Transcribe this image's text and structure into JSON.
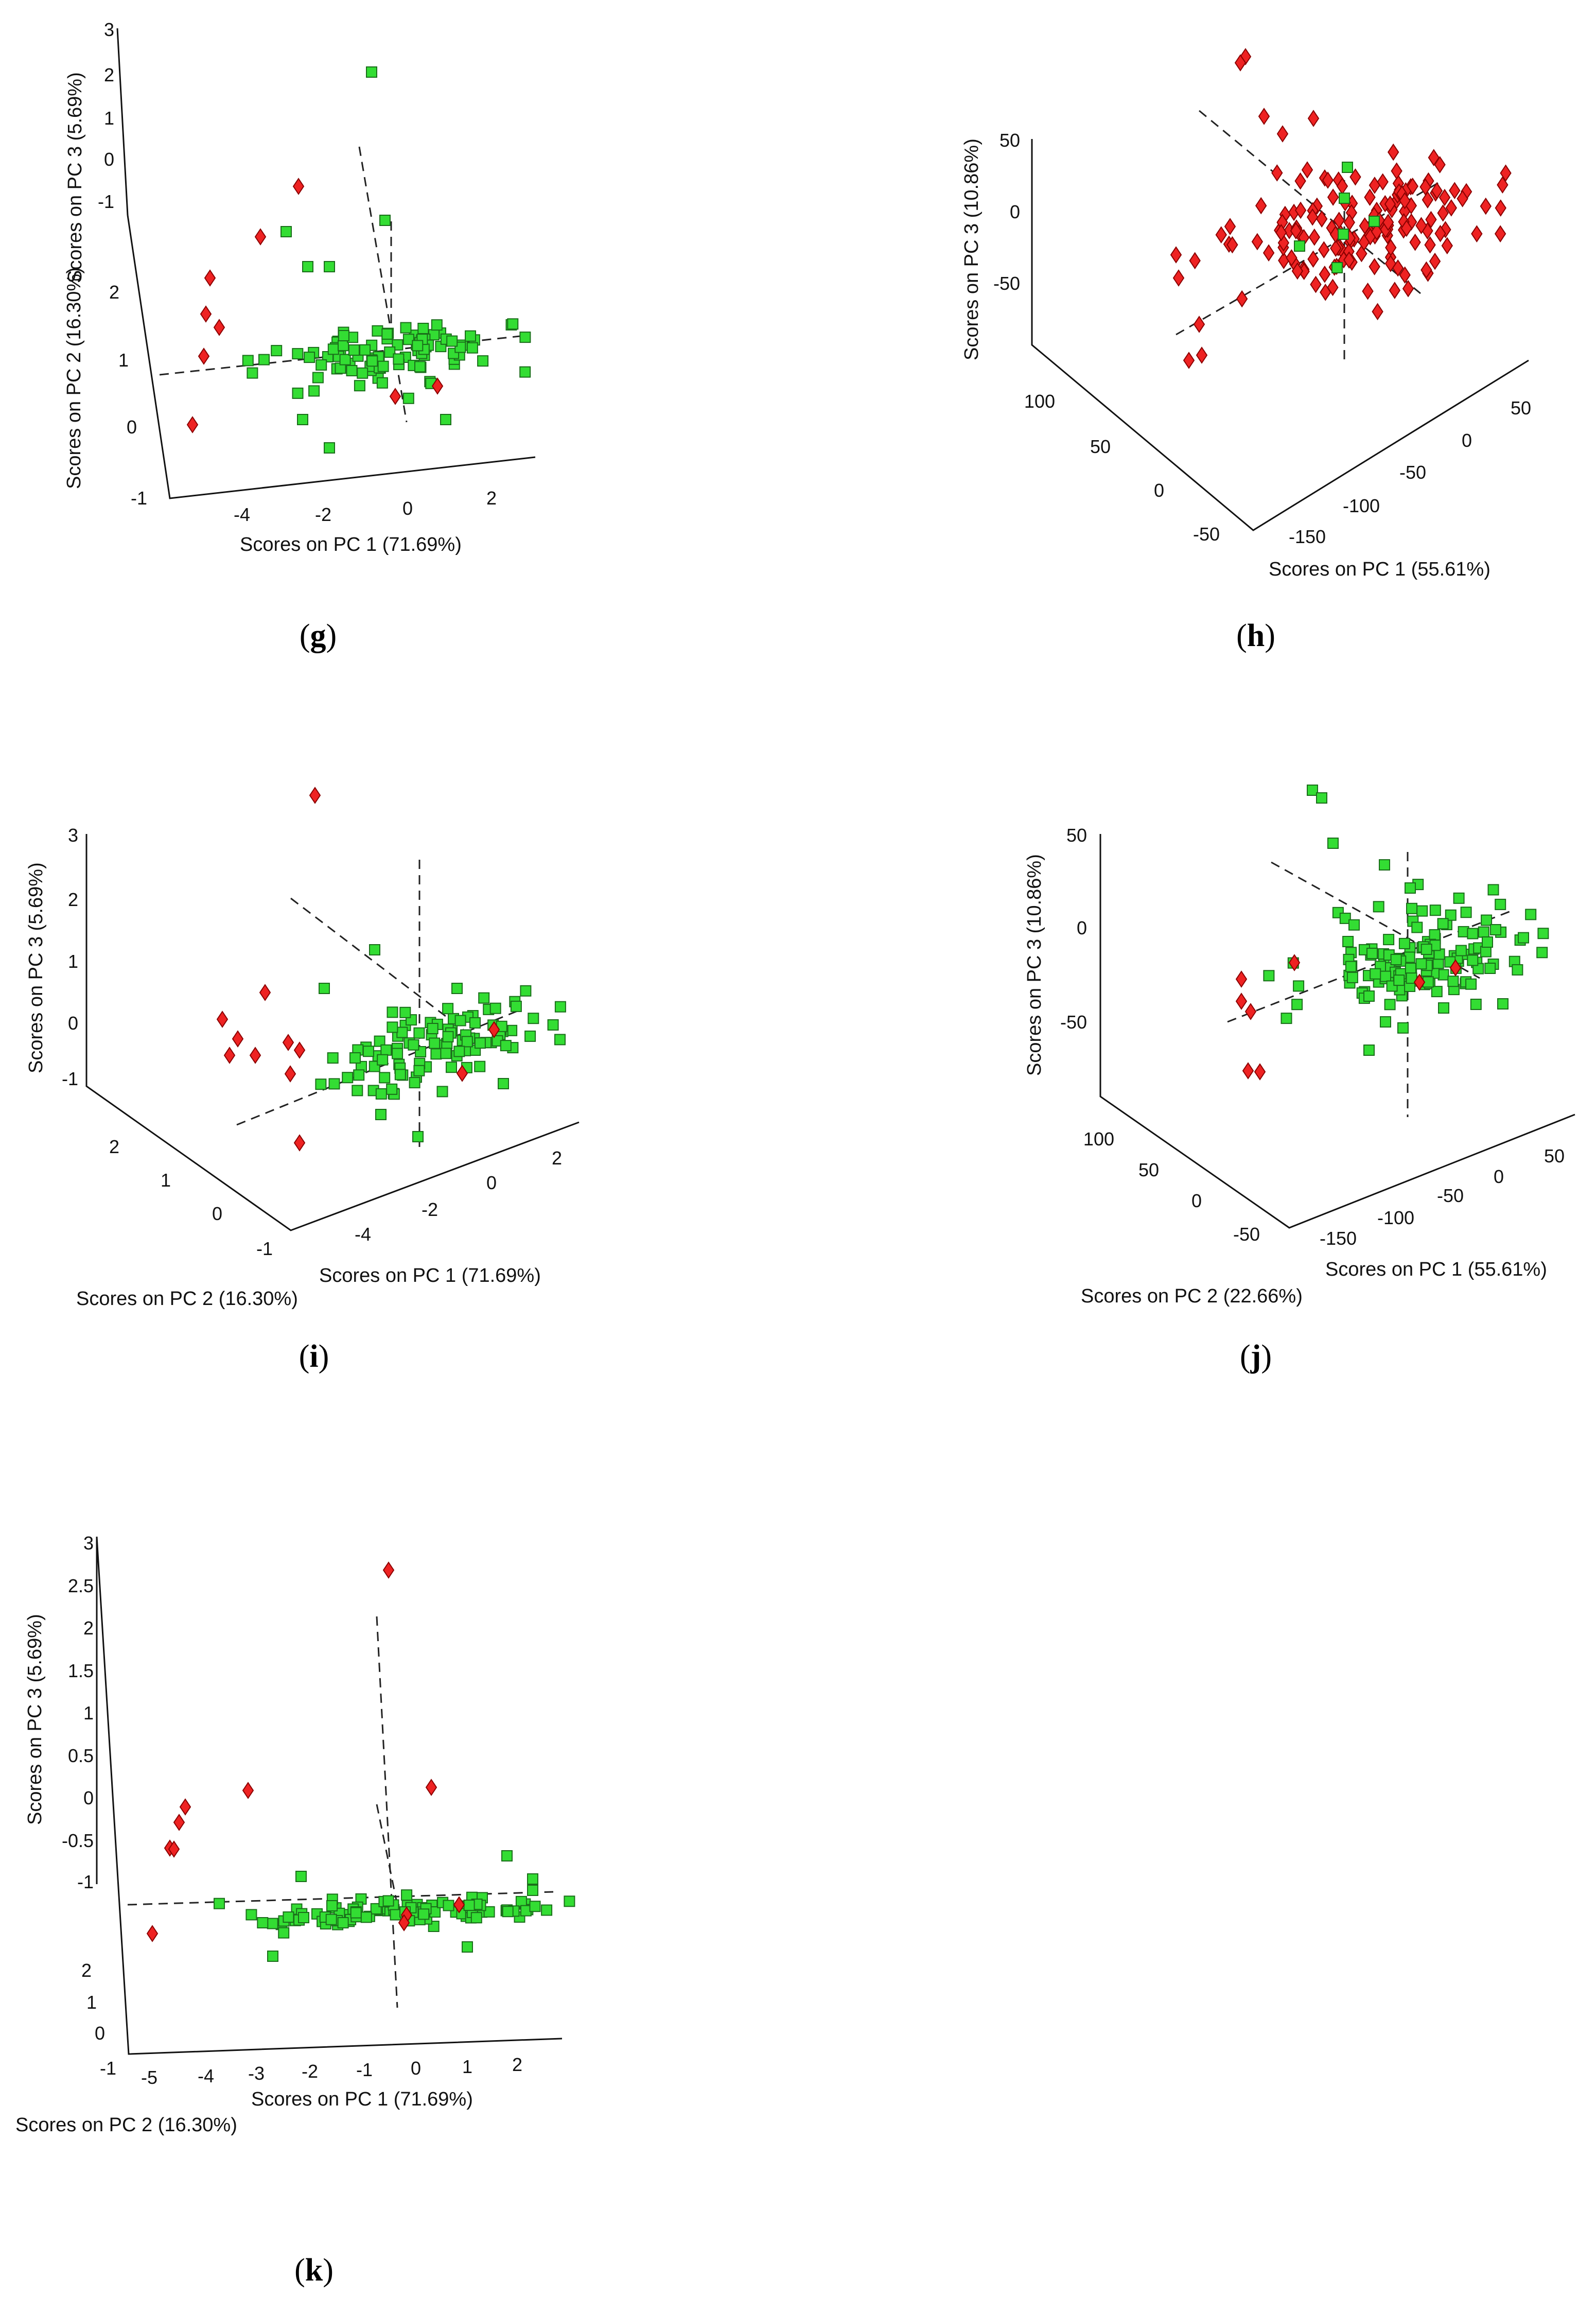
{
  "colors": {
    "green_class": "#33dd33",
    "red_class": "#ee2222",
    "axis": "#111111"
  },
  "chart_data": [
    {
      "id": "g",
      "type": "scatter",
      "label_open": "(",
      "label_mid": "g",
      "label_close": ")",
      "xlabel": "Scores on PC 1 (71.69%)",
      "ylabel": "Scores on PC 2 (16.30%)",
      "zlabel": "Scores on PC 3 (5.69%)",
      "x_ticks": [
        "-4",
        "-2",
        "0",
        "2"
      ],
      "y_ticks": [
        "2",
        "1",
        "0",
        "-1"
      ],
      "z_ticks": [
        "3",
        "2",
        "1",
        "0",
        "-1"
      ],
      "series": [
        {
          "name": "green",
          "marker": "square",
          "count": 110
        },
        {
          "name": "red",
          "marker": "diamond",
          "count": 12
        }
      ]
    },
    {
      "id": "h",
      "type": "scatter",
      "label_open": "(",
      "label_mid": "h",
      "label_close": ")",
      "xlabel": "Scores on PC 1 (55.61%)",
      "ylabel": "",
      "zlabel": "Scores on PC 3 (10.86%)",
      "x_ticks": [
        "-150",
        "-100",
        "-50",
        "0",
        "50"
      ],
      "y_ticks": [
        "100",
        "50",
        "0",
        "-50"
      ],
      "z_ticks": [
        "50",
        "0",
        "-50"
      ],
      "series": [
        {
          "name": "red",
          "marker": "diamond",
          "count": 170
        },
        {
          "name": "green",
          "marker": "square",
          "count": 6
        }
      ]
    },
    {
      "id": "i",
      "type": "scatter",
      "label_open": "(",
      "label_mid": "i",
      "label_close": ")",
      "xlabel": "Scores on PC 1 (71.69%)",
      "ylabel": "Scores on PC 2 (16.30%)",
      "zlabel": "Scores on PC 3 (5.69%)",
      "x_ticks": [
        "-4",
        "-2",
        "0",
        "2"
      ],
      "y_ticks": [
        "2",
        "1",
        "0",
        "-1"
      ],
      "z_ticks": [
        "3",
        "2",
        "1",
        "0",
        "-1"
      ],
      "series": [
        {
          "name": "green",
          "marker": "square",
          "count": 110
        },
        {
          "name": "red",
          "marker": "diamond",
          "count": 13
        }
      ]
    },
    {
      "id": "j",
      "type": "scatter",
      "label_open": "(",
      "label_mid": "j",
      "label_close": ")",
      "xlabel": "Scores on PC 1 (55.61%)",
      "ylabel": "Scores on PC 2 (22.66%)",
      "zlabel": "Scores on PC 3 (10.86%)",
      "x_ticks": [
        "-150",
        "-100",
        "-50",
        "0",
        "50"
      ],
      "y_ticks": [
        "100",
        "50",
        "0",
        "-50"
      ],
      "z_ticks": [
        "50",
        "0",
        "-50"
      ],
      "series": [
        {
          "name": "green",
          "marker": "square",
          "count": 150
        },
        {
          "name": "red",
          "marker": "diamond",
          "count": 7
        }
      ]
    },
    {
      "id": "k",
      "type": "scatter",
      "label_open": "(",
      "label_mid": "k",
      "label_close": ")",
      "xlabel": "Scores on PC 1 (71.69%)",
      "ylabel": "Scores on PC 2 (16.30%)",
      "zlabel": "Scores on PC 3 (5.69%)",
      "x_ticks": [
        "-5",
        "-4",
        "-3",
        "-2",
        "-1",
        "0",
        "1",
        "2"
      ],
      "y_ticks": [
        "2",
        "1",
        "0",
        "-1"
      ],
      "z_ticks": [
        "3",
        "2.5",
        "2",
        "1.5",
        "1",
        "0.5",
        "0",
        "-0.5",
        "-1"
      ],
      "series": [
        {
          "name": "green",
          "marker": "square",
          "count": 110
        },
        {
          "name": "red",
          "marker": "diamond",
          "count": 10
        }
      ]
    }
  ]
}
